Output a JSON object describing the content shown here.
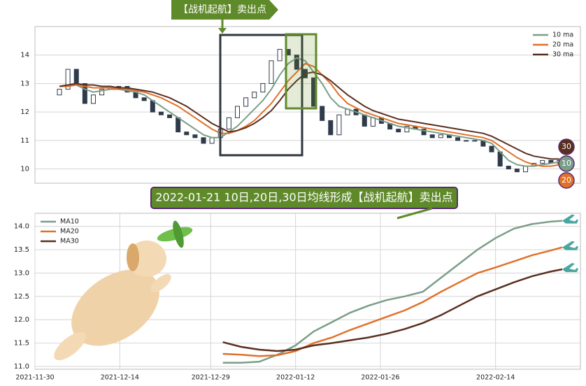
{
  "chart_data": [
    {
      "type": "candlestick",
      "annotation": "【战机起航】卖出点",
      "open": [
        12.6,
        12.8,
        13.5,
        13.0,
        12.3,
        12.6,
        12.8,
        12.9,
        12.9,
        12.7,
        12.5,
        12.4,
        12.0,
        11.9,
        11.8,
        11.3,
        11.2,
        11.1,
        10.9,
        11.1,
        11.4,
        11.8,
        12.2,
        12.5,
        12.7,
        13.0,
        13.8,
        14.2,
        14.0,
        13.5,
        13.2,
        12.2,
        11.7,
        11.2,
        11.9,
        12.1,
        11.9,
        11.5,
        11.8,
        11.6,
        11.4,
        11.3,
        11.5,
        11.4,
        11.2,
        11.1,
        11.2,
        11.1,
        11.0,
        11.0,
        11.0,
        10.8,
        10.6,
        10.1,
        10.0,
        9.9,
        10.1,
        10.2,
        10.3,
        10.2
      ],
      "close": [
        12.8,
        13.5,
        13.0,
        12.3,
        12.6,
        12.8,
        12.9,
        12.9,
        12.7,
        12.5,
        12.4,
        12.0,
        11.9,
        11.8,
        11.3,
        11.2,
        11.1,
        10.9,
        11.1,
        11.4,
        11.8,
        12.2,
        12.5,
        12.7,
        13.0,
        13.8,
        14.2,
        14.0,
        13.5,
        13.2,
        12.2,
        11.7,
        11.2,
        11.9,
        12.1,
        11.9,
        11.5,
        11.8,
        11.6,
        11.4,
        11.3,
        11.5,
        11.4,
        11.2,
        11.1,
        11.2,
        11.1,
        11.0,
        11.0,
        11.0,
        10.8,
        10.6,
        10.1,
        10.0,
        9.9,
        10.1,
        10.2,
        10.3,
        10.2,
        10.3
      ],
      "candle_color": "#2f3a4a",
      "series": [
        {
          "name": "10 ma",
          "color": "#7a9e87",
          "values": [
            12.9,
            12.95,
            12.95,
            12.8,
            12.7,
            12.75,
            12.8,
            12.8,
            12.75,
            12.7,
            12.6,
            12.4,
            12.2,
            12.0,
            11.8,
            11.6,
            11.4,
            11.2,
            11.1,
            11.1,
            11.3,
            11.5,
            11.8,
            12.1,
            12.4,
            12.8,
            13.3,
            13.7,
            13.9,
            13.8,
            13.4,
            13.0,
            12.5,
            12.2,
            12.1,
            12.0,
            11.9,
            11.8,
            11.7,
            11.6,
            11.5,
            11.45,
            11.4,
            11.35,
            11.3,
            11.25,
            11.2,
            11.15,
            11.1,
            11.05,
            11.0,
            10.9,
            10.6,
            10.3,
            10.15,
            10.1,
            10.1,
            10.15,
            10.2,
            10.25
          ]
        },
        {
          "name": "20 ma",
          "color": "#e0712a",
          "values": [
            12.9,
            12.9,
            12.95,
            12.9,
            12.85,
            12.85,
            12.85,
            12.8,
            12.8,
            12.75,
            12.7,
            12.6,
            12.5,
            12.35,
            12.2,
            12.0,
            11.8,
            11.6,
            11.4,
            11.25,
            11.25,
            11.35,
            11.5,
            11.7,
            12.0,
            12.3,
            12.7,
            13.1,
            13.4,
            13.7,
            13.6,
            13.3,
            13.0,
            12.6,
            12.3,
            12.15,
            12.0,
            11.9,
            11.8,
            11.7,
            11.6,
            11.55,
            11.5,
            11.45,
            11.4,
            11.35,
            11.3,
            11.25,
            11.2,
            11.15,
            11.1,
            11.0,
            10.8,
            10.6,
            10.4,
            10.25,
            10.15,
            10.1,
            10.1,
            10.15
          ]
        },
        {
          "name": "30 ma",
          "color": "#5a2f1f",
          "values": [
            12.9,
            12.95,
            13.0,
            12.95,
            12.95,
            12.9,
            12.9,
            12.85,
            12.85,
            12.8,
            12.75,
            12.7,
            12.6,
            12.5,
            12.35,
            12.2,
            12.0,
            11.8,
            11.6,
            11.45,
            11.3,
            11.35,
            11.45,
            11.6,
            11.8,
            12.05,
            12.4,
            12.8,
            13.1,
            13.35,
            13.4,
            13.3,
            13.1,
            12.85,
            12.6,
            12.4,
            12.2,
            12.05,
            11.95,
            11.85,
            11.75,
            11.7,
            11.65,
            11.6,
            11.55,
            11.5,
            11.45,
            11.4,
            11.35,
            11.3,
            11.25,
            11.15,
            11.0,
            10.85,
            10.7,
            10.55,
            10.45,
            10.4,
            10.35,
            10.35
          ]
        }
      ],
      "markers": [
        {
          "label": "30",
          "color": "#5a2f1f"
        },
        {
          "label": "10",
          "color": "#7a9e87"
        },
        {
          "label": "20",
          "color": "#e0712a"
        }
      ],
      "ylim": [
        9.5,
        15.0
      ],
      "yticks": [
        10,
        11,
        12,
        13,
        14
      ],
      "grid": true,
      "legend": "upper right"
    },
    {
      "type": "line",
      "annotation": "2022-01-21 10日,20日,30日均线形成【战机起航】卖出点",
      "x": [
        "2021-12-31",
        "2022-01-03",
        "2022-01-06",
        "2022-01-09",
        "2022-01-12",
        "2022-01-15",
        "2022-01-18",
        "2022-01-21",
        "2022-01-24",
        "2022-01-27",
        "2022-01-30",
        "2022-02-02",
        "2022-02-05",
        "2022-02-08",
        "2022-02-11",
        "2022-02-14",
        "2022-02-17",
        "2022-02-20",
        "2022-02-23",
        "2022-02-25"
      ],
      "series": [
        {
          "name": "MA10",
          "color": "#7a9e87",
          "values": [
            11.08,
            11.08,
            11.1,
            11.25,
            11.45,
            11.75,
            11.95,
            12.15,
            12.3,
            12.42,
            12.5,
            12.6,
            12.9,
            13.2,
            13.5,
            13.75,
            13.95,
            14.05,
            14.1,
            14.12
          ]
        },
        {
          "name": "MA20",
          "color": "#e0712a",
          "values": [
            11.27,
            11.25,
            11.22,
            11.24,
            11.33,
            11.5,
            11.62,
            11.78,
            11.92,
            12.06,
            12.2,
            12.38,
            12.6,
            12.8,
            13.0,
            13.12,
            13.25,
            13.38,
            13.48,
            13.55
          ]
        },
        {
          "name": "MA30",
          "color": "#5a2f1f",
          "values": [
            11.52,
            11.42,
            11.36,
            11.33,
            11.36,
            11.45,
            11.5,
            11.56,
            11.62,
            11.7,
            11.8,
            11.93,
            12.1,
            12.3,
            12.5,
            12.65,
            12.8,
            12.93,
            13.03,
            13.08
          ]
        }
      ],
      "xlim": [
        "2021-11-30",
        "2022-02-28"
      ],
      "xticks": [
        "2021-11-30",
        "2021-12-14",
        "2021-12-29",
        "2022-01-12",
        "2022-01-26",
        "2022-02-14"
      ],
      "ylim": [
        10.94,
        14.28
      ],
      "yticks": [
        {
          "value": 11,
          "label": "11.0"
        },
        {
          "value": 11.5,
          "label": "11.5"
        },
        {
          "value": 12,
          "label": "12.0"
        },
        {
          "value": 12.5,
          "label": "12.5"
        },
        {
          "value": 13,
          "label": "13.0"
        },
        {
          "value": 13.5,
          "label": "13.5"
        },
        {
          "value": 14,
          "label": "14.0"
        }
      ],
      "grid": true,
      "legend": "upper left"
    }
  ]
}
